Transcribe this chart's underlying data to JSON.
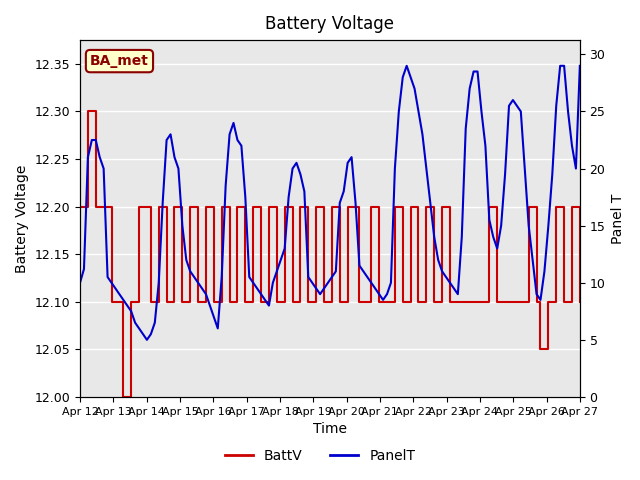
{
  "title": "Battery Voltage",
  "xlabel": "Time",
  "ylabel_left": "Battery Voltage",
  "ylabel_right": "Panel T",
  "annotation": "BA_met",
  "ylim_left": [
    12.0,
    12.375
  ],
  "ylim_right": [
    0,
    31.25
  ],
  "background_color": "#ffffff",
  "plot_bg_color": "#e8e8e8",
  "grid_color": "#ffffff",
  "x_ticks": [
    "Apr 12",
    "Apr 13",
    "Apr 14",
    "Apr 15",
    "Apr 16",
    "Apr 17",
    "Apr 18",
    "Apr 19",
    "Apr 20",
    "Apr 21",
    "Apr 22",
    "Apr 23",
    "Apr 24",
    "Apr 25",
    "Apr 26",
    "Apr 27"
  ],
  "battv_color": "#cc0000",
  "panelt_color": "#0000cc",
  "legend_battv": "BattV",
  "legend_panelt": "PanelT",
  "battv_data": [
    12.2,
    12.2,
    12.3,
    12.3,
    12.2,
    12.2,
    12.2,
    12.2,
    12.1,
    12.1,
    12.1,
    12.0,
    12.0,
    12.1,
    12.1,
    12.2,
    12.2,
    12.2,
    12.1,
    12.1,
    12.2,
    12.2,
    12.1,
    12.1,
    12.2,
    12.2,
    12.1,
    12.1,
    12.2,
    12.2,
    12.1,
    12.1,
    12.2,
    12.2,
    12.1,
    12.1,
    12.2,
    12.2,
    12.1,
    12.1,
    12.2,
    12.2,
    12.1,
    12.1,
    12.2,
    12.2,
    12.1,
    12.1,
    12.2,
    12.2,
    12.1,
    12.1,
    12.2,
    12.2,
    12.1,
    12.1,
    12.2,
    12.2,
    12.1,
    12.1,
    12.2,
    12.2,
    12.1,
    12.1,
    12.2,
    12.2,
    12.1,
    12.1,
    12.2,
    12.2,
    12.2,
    12.1,
    12.1,
    12.1,
    12.2,
    12.2,
    12.1,
    12.1,
    12.1,
    12.1,
    12.2,
    12.2,
    12.1,
    12.1,
    12.2,
    12.2,
    12.1,
    12.1,
    12.2,
    12.2,
    12.1,
    12.1,
    12.2,
    12.2,
    12.1,
    12.1,
    12.1,
    12.1,
    12.1,
    12.1,
    12.1,
    12.1,
    12.1,
    12.1,
    12.2,
    12.2,
    12.1,
    12.1,
    12.1,
    12.1,
    12.1,
    12.1,
    12.1,
    12.1,
    12.2,
    12.2,
    12.1,
    12.05,
    12.05,
    12.1,
    12.1,
    12.2,
    12.2,
    12.1,
    12.1,
    12.2,
    12.2,
    12.1
  ],
  "panelt_data": [
    10.0,
    11.2,
    21.0,
    22.5,
    22.5,
    21.0,
    20.0,
    10.5,
    10.0,
    9.5,
    9.0,
    8.5,
    8.0,
    7.5,
    6.5,
    6.0,
    5.5,
    5.0,
    5.5,
    6.5,
    10.0,
    17.0,
    22.5,
    23.0,
    21.0,
    20.0,
    15.0,
    12.0,
    11.0,
    10.5,
    10.0,
    9.5,
    9.0,
    8.0,
    7.0,
    6.0,
    10.5,
    18.5,
    23.0,
    24.0,
    22.5,
    22.0,
    17.5,
    10.5,
    10.0,
    9.5,
    9.0,
    8.5,
    8.0,
    10.0,
    11.0,
    12.0,
    13.0,
    17.5,
    20.0,
    20.5,
    19.5,
    18.0,
    10.5,
    10.0,
    9.5,
    9.0,
    9.5,
    10.0,
    10.5,
    11.0,
    17.0,
    18.0,
    20.5,
    21.0,
    17.0,
    11.5,
    11.0,
    10.5,
    10.0,
    9.5,
    9.0,
    8.5,
    9.0,
    10.0,
    20.0,
    25.0,
    28.0,
    29.0,
    28.0,
    27.0,
    25.0,
    23.0,
    20.0,
    17.0,
    14.0,
    12.0,
    11.0,
    10.5,
    10.0,
    9.5,
    9.0,
    14.0,
    23.5,
    27.0,
    28.5,
    28.5,
    25.0,
    22.0,
    15.5,
    14.0,
    13.0,
    15.0,
    19.5,
    25.5,
    26.0,
    25.5,
    25.0,
    20.0,
    15.0,
    12.0,
    9.0,
    8.5,
    11.0,
    15.0,
    19.5,
    25.5,
    29.0,
    29.0,
    25.0,
    22.0,
    20.0,
    29.0
  ]
}
